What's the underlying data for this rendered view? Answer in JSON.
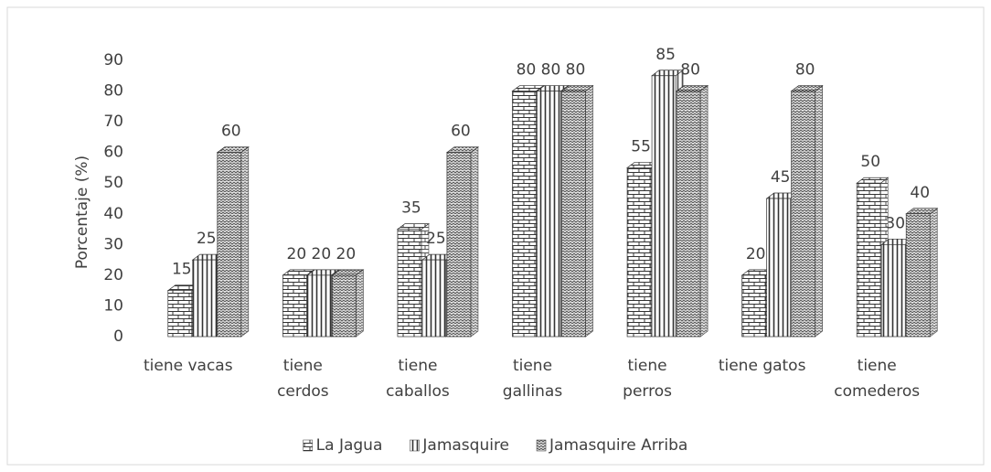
{
  "chart_data": {
    "type": "bar3d",
    "y_axis_label": "Porcentaje (%)",
    "categories": [
      "tiene vacas",
      "tiene cerdos",
      "tiene caballos",
      "tiene gallinas",
      "tiene perros",
      "tiene gatos",
      "tiene comederos"
    ],
    "series": [
      {
        "name": "La Jagua",
        "color": "#333333",
        "pattern": "brick",
        "values": [
          15,
          20,
          35,
          80,
          55,
          20,
          50
        ]
      },
      {
        "name": "Jamasquire",
        "color": "#333333",
        "pattern": "vlines",
        "values": [
          25,
          20,
          25,
          80,
          85,
          45,
          30
        ]
      },
      {
        "name": "Jamasquire Arriba",
        "color": "#333333",
        "pattern": "zigzag",
        "values": [
          60,
          20,
          60,
          80,
          80,
          80,
          40
        ]
      }
    ],
    "ylim": [
      0,
      90
    ],
    "yticks": [
      0,
      10,
      20,
      30,
      40,
      50,
      60,
      70,
      80,
      90
    ],
    "legend": "bottom"
  }
}
